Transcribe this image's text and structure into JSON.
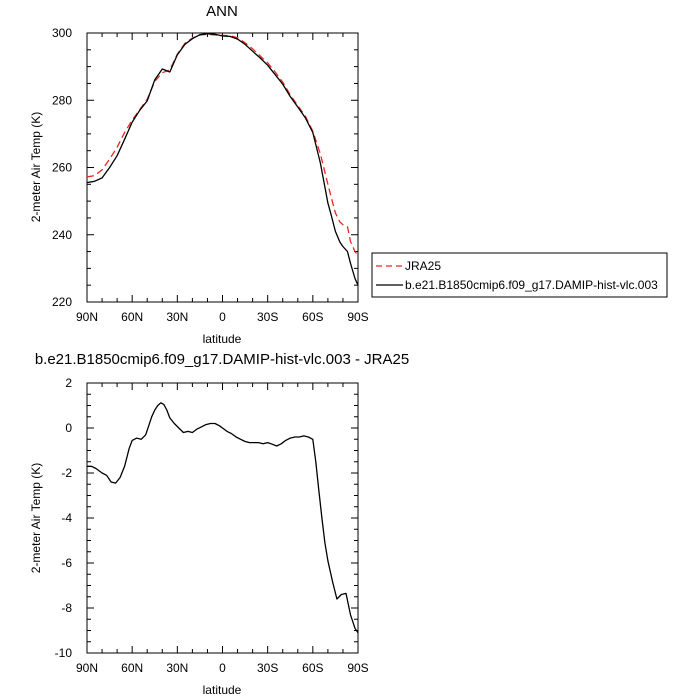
{
  "chart_data": [
    {
      "type": "line",
      "title": "ANN",
      "xlabel": "latitude",
      "ylabel": "2-meter Air Temp (K)",
      "xlim": [
        90,
        -90
      ],
      "ylim": [
        220,
        300
      ],
      "xticks": [
        90,
        60,
        30,
        0,
        -30,
        -60,
        -90
      ],
      "xtick_labels": [
        "90N",
        "60N",
        "30N",
        "0",
        "30S",
        "60S",
        "90S"
      ],
      "yticks": [
        220,
        240,
        260,
        280,
        300
      ],
      "ytick_labels": [
        "220",
        "240",
        "260",
        "280",
        "300"
      ],
      "grid": false,
      "legend_position": "outside-right",
      "series": [
        {
          "name": "JRA25",
          "color": "#e8281e",
          "dash": "dashed",
          "x": [
            90,
            85,
            80,
            75,
            70,
            65,
            60,
            55,
            50,
            45,
            40,
            35,
            30,
            25,
            20,
            15,
            10,
            5,
            0,
            -5,
            -10,
            -15,
            -20,
            -25,
            -30,
            -35,
            -40,
            -45,
            -50,
            -55,
            -60,
            -65,
            -70,
            -72,
            -75,
            -78,
            -80,
            -83,
            -85,
            -88,
            -90
          ],
          "y": [
            257.2,
            257.6,
            259.3,
            262.5,
            266.0,
            270.4,
            274.1,
            277.2,
            280.3,
            285.6,
            288.2,
            289.0,
            293.7,
            296.9,
            298.5,
            299.4,
            299.6,
            299.4,
            299.3,
            299.2,
            298.6,
            297.1,
            295.3,
            293.2,
            291.1,
            288.4,
            285.4,
            281.6,
            278.4,
            275.3,
            270.8,
            264.0,
            255.0,
            251.5,
            246.5,
            243.8,
            243.0,
            242.4,
            238.0,
            235.0,
            233.8
          ]
        },
        {
          "name": "b.e21.B1850cmip6.f09_g17.DAMIP-hist-vlc.003",
          "color": "#000000",
          "dash": "solid",
          "x": [
            90,
            85,
            80,
            75,
            70,
            65,
            60,
            55,
            50,
            45,
            40,
            35,
            30,
            25,
            20,
            15,
            10,
            5,
            0,
            -5,
            -10,
            -15,
            -20,
            -25,
            -30,
            -35,
            -40,
            -45,
            -50,
            -55,
            -60,
            -65,
            -70,
            -72,
            -75,
            -78,
            -80,
            -83,
            -85,
            -88,
            -90
          ],
          "y": [
            255.5,
            255.9,
            256.9,
            260.0,
            263.5,
            268.4,
            273.5,
            277.0,
            279.8,
            286.1,
            289.3,
            288.4,
            293.5,
            296.6,
            298.3,
            299.5,
            299.8,
            299.6,
            299.1,
            299.0,
            298.2,
            296.6,
            294.6,
            292.6,
            290.4,
            287.6,
            284.8,
            281.1,
            278.0,
            274.8,
            270.4,
            261.3,
            249.4,
            246.2,
            241.0,
            237.8,
            236.5,
            235.0,
            231.5,
            227.0,
            225.0
          ]
        }
      ]
    },
    {
      "type": "line",
      "title": "b.e21.B1850cmip6.f09_g17.DAMIP-hist-vlc.003 - JRA25",
      "xlabel": "latitude",
      "ylabel": "2-meter Air Temp (K)",
      "xlim": [
        90,
        -90
      ],
      "ylim": [
        -10,
        2
      ],
      "xticks": [
        90,
        60,
        30,
        0,
        -30,
        -60,
        -90
      ],
      "xtick_labels": [
        "90N",
        "60N",
        "30N",
        "0",
        "30S",
        "60S",
        "90S"
      ],
      "yticks": [
        -10,
        -8,
        -6,
        -4,
        -2,
        0,
        2
      ],
      "ytick_labels": [
        "-10",
        "-8",
        "-6",
        "-4",
        "-2",
        "0",
        "2"
      ],
      "grid": false,
      "series": [
        {
          "color": "#000000",
          "dash": "solid",
          "x": [
            90,
            87,
            84,
            80,
            77,
            74,
            71,
            68,
            65,
            62,
            60,
            57,
            54,
            51,
            49,
            47,
            45,
            43,
            41,
            39,
            37,
            35,
            32,
            29,
            26,
            23,
            20,
            17,
            14,
            11,
            8,
            5,
            2,
            0,
            -3,
            -6,
            -9,
            -12,
            -15,
            -18,
            -21,
            -24,
            -27,
            -30,
            -33,
            -36,
            -39,
            -42,
            -45,
            -48,
            -51,
            -54,
            -57,
            -60,
            -62,
            -64,
            -66,
            -68,
            -70,
            -73,
            -76,
            -79,
            -82,
            -85,
            -88,
            -90
          ],
          "y": [
            -1.7,
            -1.7,
            -1.8,
            -2.0,
            -2.1,
            -2.4,
            -2.45,
            -2.2,
            -1.7,
            -0.9,
            -0.55,
            -0.45,
            -0.5,
            -0.3,
            0.1,
            0.5,
            0.8,
            1.0,
            1.12,
            1.05,
            0.8,
            0.45,
            0.2,
            0.0,
            -0.2,
            -0.15,
            -0.2,
            -0.05,
            0.05,
            0.15,
            0.2,
            0.2,
            0.1,
            0.0,
            -0.15,
            -0.25,
            -0.4,
            -0.5,
            -0.6,
            -0.65,
            -0.65,
            -0.65,
            -0.7,
            -0.65,
            -0.72,
            -0.8,
            -0.7,
            -0.55,
            -0.45,
            -0.4,
            -0.4,
            -0.35,
            -0.4,
            -0.5,
            -1.5,
            -2.8,
            -4.0,
            -5.1,
            -5.9,
            -6.8,
            -7.6,
            -7.4,
            -7.35,
            -8.3,
            -8.9,
            -9.1
          ]
        }
      ]
    }
  ]
}
